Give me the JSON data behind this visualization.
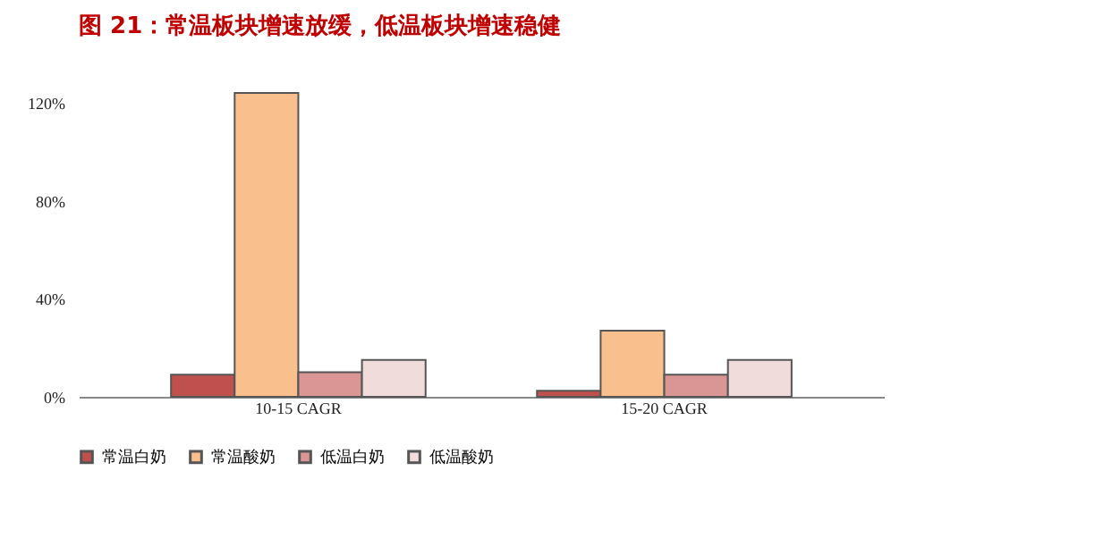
{
  "chart_data": {
    "type": "bar",
    "title": "图 21：常温板块增速放缓，低温板块增速稳健",
    "categories": [
      "10-15 CAGR",
      "15-20 CAGR"
    ],
    "series": [
      {
        "name": "常温白奶",
        "color": "#c0504d",
        "values": [
          9,
          2.5
        ]
      },
      {
        "name": "常温酸奶",
        "color": "#f9c08e",
        "values": [
          124,
          27
        ]
      },
      {
        "name": "低温白奶",
        "color": "#d99694",
        "values": [
          10,
          9
        ]
      },
      {
        "name": "低温酸奶",
        "color": "#f0dcdb",
        "values": [
          15,
          15
        ]
      }
    ],
    "ylim": [
      0,
      124
    ],
    "yticks": [
      {
        "value": 0,
        "label": "0%"
      },
      {
        "value": 40,
        "label": "40%"
      },
      {
        "value": 80,
        "label": "80%"
      },
      {
        "value": 120,
        "label": "120%"
      }
    ],
    "grid": false,
    "legend": "bottom"
  }
}
